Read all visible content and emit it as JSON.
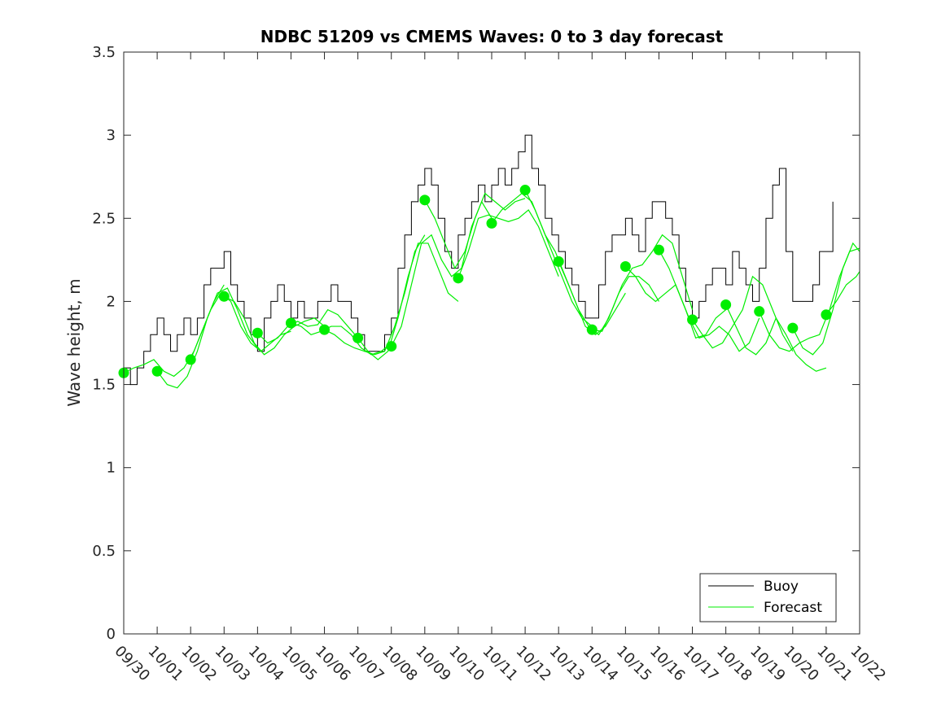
{
  "chart_data": {
    "type": "line",
    "title": "NDBC 51209 vs CMEMS Waves: 0 to 3 day forecast",
    "xlabel": "",
    "ylabel": "Wave height, m",
    "xlim": [
      0,
      22
    ],
    "ylim": [
      0,
      3.5
    ],
    "yticks": [
      0,
      0.5,
      1,
      1.5,
      2,
      2.5,
      3,
      3.5
    ],
    "ytick_labels": [
      "0",
      "0.5",
      "1",
      "1.5",
      "2",
      "2.5",
      "3",
      "3.5"
    ],
    "xtick_labels": [
      "09/30",
      "10/01",
      "10/02",
      "10/03",
      "10/04",
      "10/05",
      "10/06",
      "10/07",
      "10/08",
      "10/09",
      "10/10",
      "10/11",
      "10/12",
      "10/13",
      "10/14",
      "10/15",
      "10/16",
      "10/17",
      "10/18",
      "10/19",
      "10/20",
      "10/21",
      "10/22"
    ],
    "legend": {
      "position": "bottom-right",
      "entries": [
        "Buoy",
        "Forecast"
      ]
    },
    "colors": {
      "buoy": "#000000",
      "forecast": "#00ee00"
    },
    "series": [
      {
        "name": "Buoy",
        "x": [
          0,
          0.2,
          0.4,
          0.6,
          0.8,
          1.0,
          1.2,
          1.4,
          1.6,
          1.8,
          2.0,
          2.2,
          2.4,
          2.6,
          2.8,
          3.0,
          3.2,
          3.4,
          3.6,
          3.8,
          4.0,
          4.2,
          4.4,
          4.6,
          4.8,
          5.0,
          5.2,
          5.4,
          5.6,
          5.8,
          6.0,
          6.2,
          6.4,
          6.6,
          6.8,
          7.0,
          7.2,
          7.4,
          7.6,
          7.8,
          8.0,
          8.2,
          8.4,
          8.6,
          8.8,
          9.0,
          9.2,
          9.4,
          9.6,
          9.8,
          10.0,
          10.2,
          10.4,
          10.6,
          10.8,
          11.0,
          11.2,
          11.4,
          11.6,
          11.8,
          12.0,
          12.2,
          12.4,
          12.6,
          12.8,
          13.0,
          13.2,
          13.4,
          13.6,
          13.8,
          14.0,
          14.2,
          14.4,
          14.6,
          14.8,
          15.0,
          15.2,
          15.4,
          15.6,
          15.8,
          16.0,
          16.2,
          16.4,
          16.6,
          16.8,
          17.0,
          17.2,
          17.4,
          17.6,
          17.8,
          18.0,
          18.2,
          18.4,
          18.6,
          18.8,
          19.0,
          19.2,
          19.4,
          19.6,
          19.8,
          20.0,
          20.2,
          20.4,
          20.6,
          20.8,
          21.0,
          21.2
        ],
        "values": [
          1.6,
          1.5,
          1.6,
          1.7,
          1.8,
          1.9,
          1.8,
          1.7,
          1.8,
          1.9,
          1.8,
          1.9,
          2.1,
          2.2,
          2.2,
          2.3,
          2.1,
          2.0,
          1.9,
          1.8,
          1.7,
          1.9,
          2.0,
          2.1,
          2.0,
          1.9,
          2.0,
          1.9,
          1.9,
          2.0,
          2.0,
          2.1,
          2.0,
          2.0,
          1.9,
          1.8,
          1.7,
          1.7,
          1.7,
          1.8,
          1.9,
          2.2,
          2.4,
          2.6,
          2.7,
          2.8,
          2.7,
          2.5,
          2.3,
          2.2,
          2.4,
          2.5,
          2.6,
          2.7,
          2.6,
          2.7,
          2.8,
          2.7,
          2.8,
          2.9,
          3.0,
          2.8,
          2.7,
          2.5,
          2.4,
          2.3,
          2.2,
          2.1,
          2.0,
          1.9,
          1.9,
          2.1,
          2.3,
          2.4,
          2.4,
          2.5,
          2.4,
          2.3,
          2.5,
          2.6,
          2.6,
          2.5,
          2.4,
          2.2,
          2.0,
          1.9,
          2.0,
          2.1,
          2.2,
          2.2,
          2.1,
          2.3,
          2.2,
          2.1,
          2.0,
          2.2,
          2.5,
          2.7,
          2.8,
          2.3,
          2.0,
          2.0,
          2.0,
          2.1,
          2.3,
          2.3,
          2.6
        ]
      },
      {
        "name": "Forecast",
        "runs": [
          {
            "x": [
              0,
              0.3,
              0.6,
              0.9,
              1.2,
              1.5,
              1.8,
              2.1,
              2.4,
              2.7,
              3.0
            ],
            "values": [
              1.57,
              1.6,
              1.62,
              1.65,
              1.58,
              1.55,
              1.6,
              1.7,
              1.85,
              2.0,
              2.1
            ]
          },
          {
            "x": [
              1,
              1.3,
              1.6,
              1.9,
              2.2,
              2.5,
              2.8,
              3.1,
              3.4,
              3.7,
              4.0
            ],
            "values": [
              1.58,
              1.5,
              1.48,
              1.55,
              1.7,
              1.9,
              2.05,
              2.08,
              1.95,
              1.8,
              1.72
            ]
          },
          {
            "x": [
              2,
              2.3,
              2.6,
              2.9,
              3.2,
              3.5,
              3.8,
              4.1,
              4.4,
              4.7,
              5.0
            ],
            "values": [
              1.65,
              1.8,
              1.95,
              2.05,
              2.0,
              1.85,
              1.75,
              1.7,
              1.75,
              1.8,
              1.82
            ]
          },
          {
            "x": [
              3,
              3.3,
              3.6,
              3.9,
              4.2,
              4.5,
              4.8,
              5.1,
              5.4,
              5.7,
              6.0
            ],
            "values": [
              2.03,
              2.0,
              1.9,
              1.75,
              1.68,
              1.72,
              1.8,
              1.85,
              1.88,
              1.9,
              1.85
            ]
          },
          {
            "x": [
              4,
              4.3,
              4.6,
              4.9,
              5.2,
              5.5,
              5.8,
              6.1,
              6.4,
              6.7,
              7.0
            ],
            "values": [
              1.81,
              1.75,
              1.78,
              1.85,
              1.88,
              1.85,
              1.86,
              1.95,
              1.92,
              1.85,
              1.78
            ]
          },
          {
            "x": [
              5,
              5.3,
              5.6,
              5.9,
              6.2,
              6.5,
              6.8,
              7.1,
              7.4,
              7.7,
              8.0
            ],
            "values": [
              1.87,
              1.85,
              1.8,
              1.82,
              1.85,
              1.85,
              1.8,
              1.72,
              1.68,
              1.7,
              1.75
            ]
          },
          {
            "x": [
              6,
              6.3,
              6.6,
              6.9,
              7.2,
              7.5,
              7.8,
              8.1,
              8.4,
              8.7,
              9.0
            ],
            "values": [
              1.83,
              1.8,
              1.75,
              1.72,
              1.7,
              1.68,
              1.7,
              1.85,
              2.05,
              2.3,
              2.4
            ]
          },
          {
            "x": [
              7,
              7.3,
              7.6,
              7.9,
              8.2,
              8.5,
              8.8,
              9.1,
              9.4,
              9.7,
              10.0
            ],
            "values": [
              1.78,
              1.7,
              1.65,
              1.7,
              1.9,
              2.15,
              2.35,
              2.35,
              2.2,
              2.05,
              2.0
            ]
          },
          {
            "x": [
              8,
              8.3,
              8.6,
              8.9,
              9.2,
              9.5,
              9.8,
              10.1,
              10.4,
              10.7,
              11.0
            ],
            "values": [
              1.73,
              1.85,
              2.1,
              2.35,
              2.4,
              2.25,
              2.15,
              2.2,
              2.45,
              2.6,
              2.5
            ]
          },
          {
            "x": [
              9,
              9.3,
              9.6,
              9.9,
              10.2,
              10.5,
              10.8,
              11.1,
              11.4,
              11.7,
              12.0
            ],
            "values": [
              2.61,
              2.5,
              2.35,
              2.2,
              2.3,
              2.5,
              2.65,
              2.6,
              2.55,
              2.6,
              2.62
            ]
          },
          {
            "x": [
              10,
              10.3,
              10.6,
              10.9,
              11.2,
              11.5,
              11.8,
              12.1,
              12.4,
              12.7,
              13.0
            ],
            "values": [
              2.14,
              2.3,
              2.5,
              2.52,
              2.5,
              2.48,
              2.5,
              2.55,
              2.45,
              2.3,
              2.15
            ]
          },
          {
            "x": [
              11,
              11.3,
              11.6,
              11.9,
              12.2,
              12.5,
              12.8,
              13.1,
              13.4,
              13.7,
              14.0
            ],
            "values": [
              2.47,
              2.55,
              2.6,
              2.65,
              2.6,
              2.45,
              2.3,
              2.15,
              2.0,
              1.9,
              1.85
            ]
          },
          {
            "x": [
              12,
              12.3,
              12.6,
              12.9,
              13.2,
              13.5,
              13.8,
              14.1,
              14.4,
              14.7,
              15.0
            ],
            "values": [
              2.67,
              2.55,
              2.4,
              2.3,
              2.15,
              2.0,
              1.85,
              1.8,
              1.85,
              1.95,
              2.05
            ]
          },
          {
            "x": [
              13,
              13.3,
              13.6,
              13.9,
              14.2,
              14.5,
              14.8,
              15.1,
              15.4,
              15.7,
              16.0
            ],
            "values": [
              2.24,
              2.1,
              1.95,
              1.85,
              1.8,
              1.9,
              2.05,
              2.15,
              2.15,
              2.1,
              2.0
            ]
          },
          {
            "x": [
              14,
              14.3,
              14.6,
              14.9,
              15.2,
              15.5,
              15.8,
              16.1,
              16.4,
              16.7,
              17.0
            ],
            "values": [
              1.83,
              1.82,
              1.95,
              2.1,
              2.2,
              2.22,
              2.3,
              2.4,
              2.35,
              2.15,
              1.95
            ]
          },
          {
            "x": [
              15,
              15.3,
              15.6,
              15.9,
              16.2,
              16.5,
              16.8,
              17.1,
              17.4,
              17.7,
              18.0
            ],
            "values": [
              2.21,
              2.15,
              2.05,
              2.0,
              2.05,
              2.1,
              1.95,
              1.78,
              1.8,
              1.9,
              1.95
            ]
          },
          {
            "x": [
              16,
              16.3,
              16.6,
              16.9,
              17.2,
              17.5,
              17.8,
              18.1,
              18.4,
              18.7,
              19.0
            ],
            "values": [
              2.31,
              2.2,
              2.05,
              1.9,
              1.78,
              1.8,
              1.85,
              1.8,
              1.7,
              1.75,
              1.9
            ]
          },
          {
            "x": [
              17,
              17.3,
              17.6,
              17.9,
              18.2,
              18.5,
              18.8,
              19.1,
              19.4,
              19.7,
              20.0
            ],
            "values": [
              1.89,
              1.8,
              1.72,
              1.75,
              1.85,
              1.95,
              2.15,
              2.1,
              1.95,
              1.8,
              1.7
            ]
          },
          {
            "x": [
              18,
              18.3,
              18.6,
              18.9,
              19.2,
              19.5,
              19.8,
              20.1,
              20.4,
              20.7,
              21.0
            ],
            "values": [
              1.98,
              1.85,
              1.72,
              1.68,
              1.75,
              1.9,
              1.8,
              1.68,
              1.62,
              1.58,
              1.6
            ]
          },
          {
            "x": [
              19,
              19.3,
              19.6,
              19.9,
              20.2,
              20.5,
              20.8,
              21.1,
              21.4,
              21.7,
              22.0
            ],
            "values": [
              1.94,
              1.8,
              1.72,
              1.7,
              1.75,
              1.78,
              1.8,
              1.95,
              2.15,
              2.3,
              2.32
            ]
          },
          {
            "x": [
              20,
              20.3,
              20.6,
              20.9,
              21.2,
              21.5,
              21.8,
              22.0
            ],
            "values": [
              1.84,
              1.72,
              1.68,
              1.75,
              1.95,
              2.2,
              2.35,
              2.3
            ]
          },
          {
            "x": [
              21,
              21.3,
              21.6,
              21.9,
              22.0
            ],
            "values": [
              1.92,
              2.0,
              2.1,
              2.15,
              2.18
            ]
          }
        ],
        "initial_points": {
          "x": [
            0,
            1,
            2,
            3,
            4,
            5,
            6,
            7,
            8,
            9,
            10,
            11,
            12,
            13,
            14,
            15,
            16,
            17,
            18,
            19,
            20,
            21
          ],
          "values": [
            1.57,
            1.58,
            1.65,
            2.03,
            1.81,
            1.87,
            1.83,
            1.78,
            1.73,
            2.61,
            2.14,
            2.47,
            2.67,
            2.24,
            1.83,
            2.21,
            2.31,
            1.89,
            1.98,
            1.94,
            1.84,
            1.92
          ]
        }
      }
    ]
  }
}
